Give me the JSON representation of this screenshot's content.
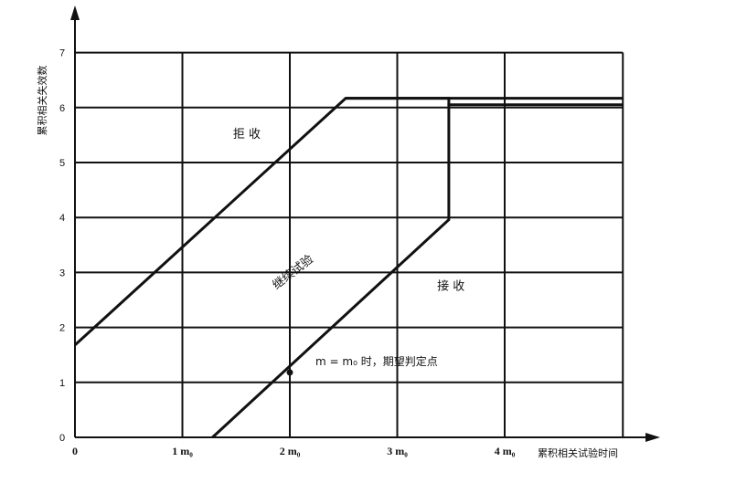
{
  "chart_data": {
    "type": "line",
    "title": "",
    "xlabel": "累积相关试验时间",
    "ylabel": "累积相关失效数",
    "x_unit": "m₀",
    "xlim": [
      0,
      5.1
    ],
    "ylim": [
      0,
      7
    ],
    "x_ticks": [
      {
        "value": 0,
        "label": "0"
      },
      {
        "value": 1,
        "label": "1 m₀"
      },
      {
        "value": 2,
        "label": "2 m₀"
      },
      {
        "value": 3,
        "label": "3 m₀"
      },
      {
        "value": 4,
        "label": "4 m₀"
      }
    ],
    "y_ticks": [
      {
        "value": 0,
        "label": "0"
      },
      {
        "value": 1,
        "label": "1"
      },
      {
        "value": 2,
        "label": "2"
      },
      {
        "value": 3,
        "label": "3"
      },
      {
        "value": 4,
        "label": "4"
      },
      {
        "value": 5,
        "label": "5"
      },
      {
        "value": 6,
        "label": "6"
      },
      {
        "value": 7,
        "label": "7"
      }
    ],
    "grid": true,
    "series": [
      {
        "points": [
          [
            0,
            1.68
          ],
          [
            2.52,
            6.17
          ],
          [
            5.1,
            6.17
          ]
        ]
      },
      {
        "points": [
          [
            1.28,
            0
          ],
          [
            3.48,
            3.96
          ],
          [
            3.48,
            6.05
          ],
          [
            5.1,
            6.05
          ]
        ]
      },
      {
        "points": [
          [
            2.52,
            6.17
          ],
          [
            3.48,
            6.17
          ],
          [
            3.48,
            6.05
          ]
        ]
      }
    ],
    "regions": [
      {
        "label": "拒   收",
        "x": 1.6,
        "y": 5.45
      },
      {
        "label": "继续试验",
        "x": 2.05,
        "y": 2.95,
        "rotate": -38
      },
      {
        "label": "接    收",
        "x": 3.5,
        "y": 2.68
      }
    ],
    "annotations": [
      {
        "text": "m = m₀ 时，期望判定点",
        "point": [
          2.0,
          1.38
        ]
      }
    ]
  }
}
